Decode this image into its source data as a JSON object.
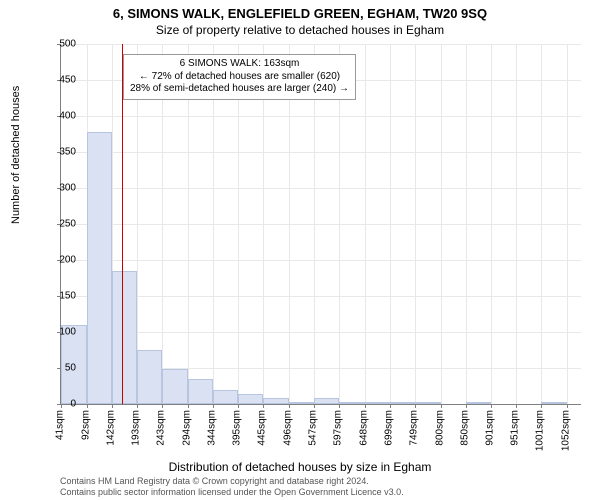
{
  "title": "6, SIMONS WALK, ENGLEFIELD GREEN, EGHAM, TW20 9SQ",
  "subtitle": "Size of property relative to detached houses in Egham",
  "ylabel": "Number of detached houses",
  "xlabel": "Distribution of detached houses by size in Egham",
  "chart": {
    "type": "histogram",
    "ylim": [
      0,
      500
    ],
    "ytick_step": 50,
    "x_min": 41,
    "x_max": 1080,
    "xtick_step": 50.5,
    "xticks_labels": [
      "41sqm",
      "92sqm",
      "142sqm",
      "193sqm",
      "243sqm",
      "294sqm",
      "344sqm",
      "395sqm",
      "445sqm",
      "496sqm",
      "547sqm",
      "597sqm",
      "648sqm",
      "699sqm",
      "749sqm",
      "800sqm",
      "850sqm",
      "901sqm",
      "951sqm",
      "1001sqm",
      "1052sqm"
    ],
    "xticks_values": [
      41,
      92,
      142,
      193,
      243,
      294,
      344,
      395,
      445,
      496,
      547,
      597,
      648,
      699,
      749,
      800,
      850,
      901,
      951,
      1001,
      1052
    ],
    "bar_color": "#d9e1f2",
    "bar_border": "#b8c5e0",
    "grid_color": "#e8e8e8",
    "axis_color": "#808080",
    "bins": [
      {
        "start": 41,
        "end": 92,
        "count": 110
      },
      {
        "start": 92,
        "end": 142,
        "count": 378
      },
      {
        "start": 142,
        "end": 193,
        "count": 185
      },
      {
        "start": 193,
        "end": 243,
        "count": 75
      },
      {
        "start": 243,
        "end": 294,
        "count": 48
      },
      {
        "start": 294,
        "end": 344,
        "count": 35
      },
      {
        "start": 344,
        "end": 395,
        "count": 20
      },
      {
        "start": 395,
        "end": 445,
        "count": 14
      },
      {
        "start": 445,
        "end": 496,
        "count": 9
      },
      {
        "start": 496,
        "end": 547,
        "count": 3
      },
      {
        "start": 547,
        "end": 597,
        "count": 9
      },
      {
        "start": 597,
        "end": 648,
        "count": 2
      },
      {
        "start": 648,
        "end": 699,
        "count": 2
      },
      {
        "start": 699,
        "end": 749,
        "count": 2
      },
      {
        "start": 749,
        "end": 800,
        "count": 3
      },
      {
        "start": 800,
        "end": 850,
        "count": 0
      },
      {
        "start": 850,
        "end": 901,
        "count": 2
      },
      {
        "start": 901,
        "end": 951,
        "count": 0
      },
      {
        "start": 951,
        "end": 1001,
        "count": 0
      },
      {
        "start": 1001,
        "end": 1052,
        "count": 2
      }
    ],
    "marker": {
      "value": 163,
      "color": "#cc0000"
    }
  },
  "annotation": {
    "line1": "6 SIMONS WALK: 163sqm",
    "line2": "← 72% of detached houses are smaller (620)",
    "line3": "28% of semi-detached houses are larger (240) →"
  },
  "attribution": {
    "line1": "Contains HM Land Registry data © Crown copyright and database right 2024.",
    "line2": "Contains public sector information licensed under the Open Government Licence v3.0."
  }
}
